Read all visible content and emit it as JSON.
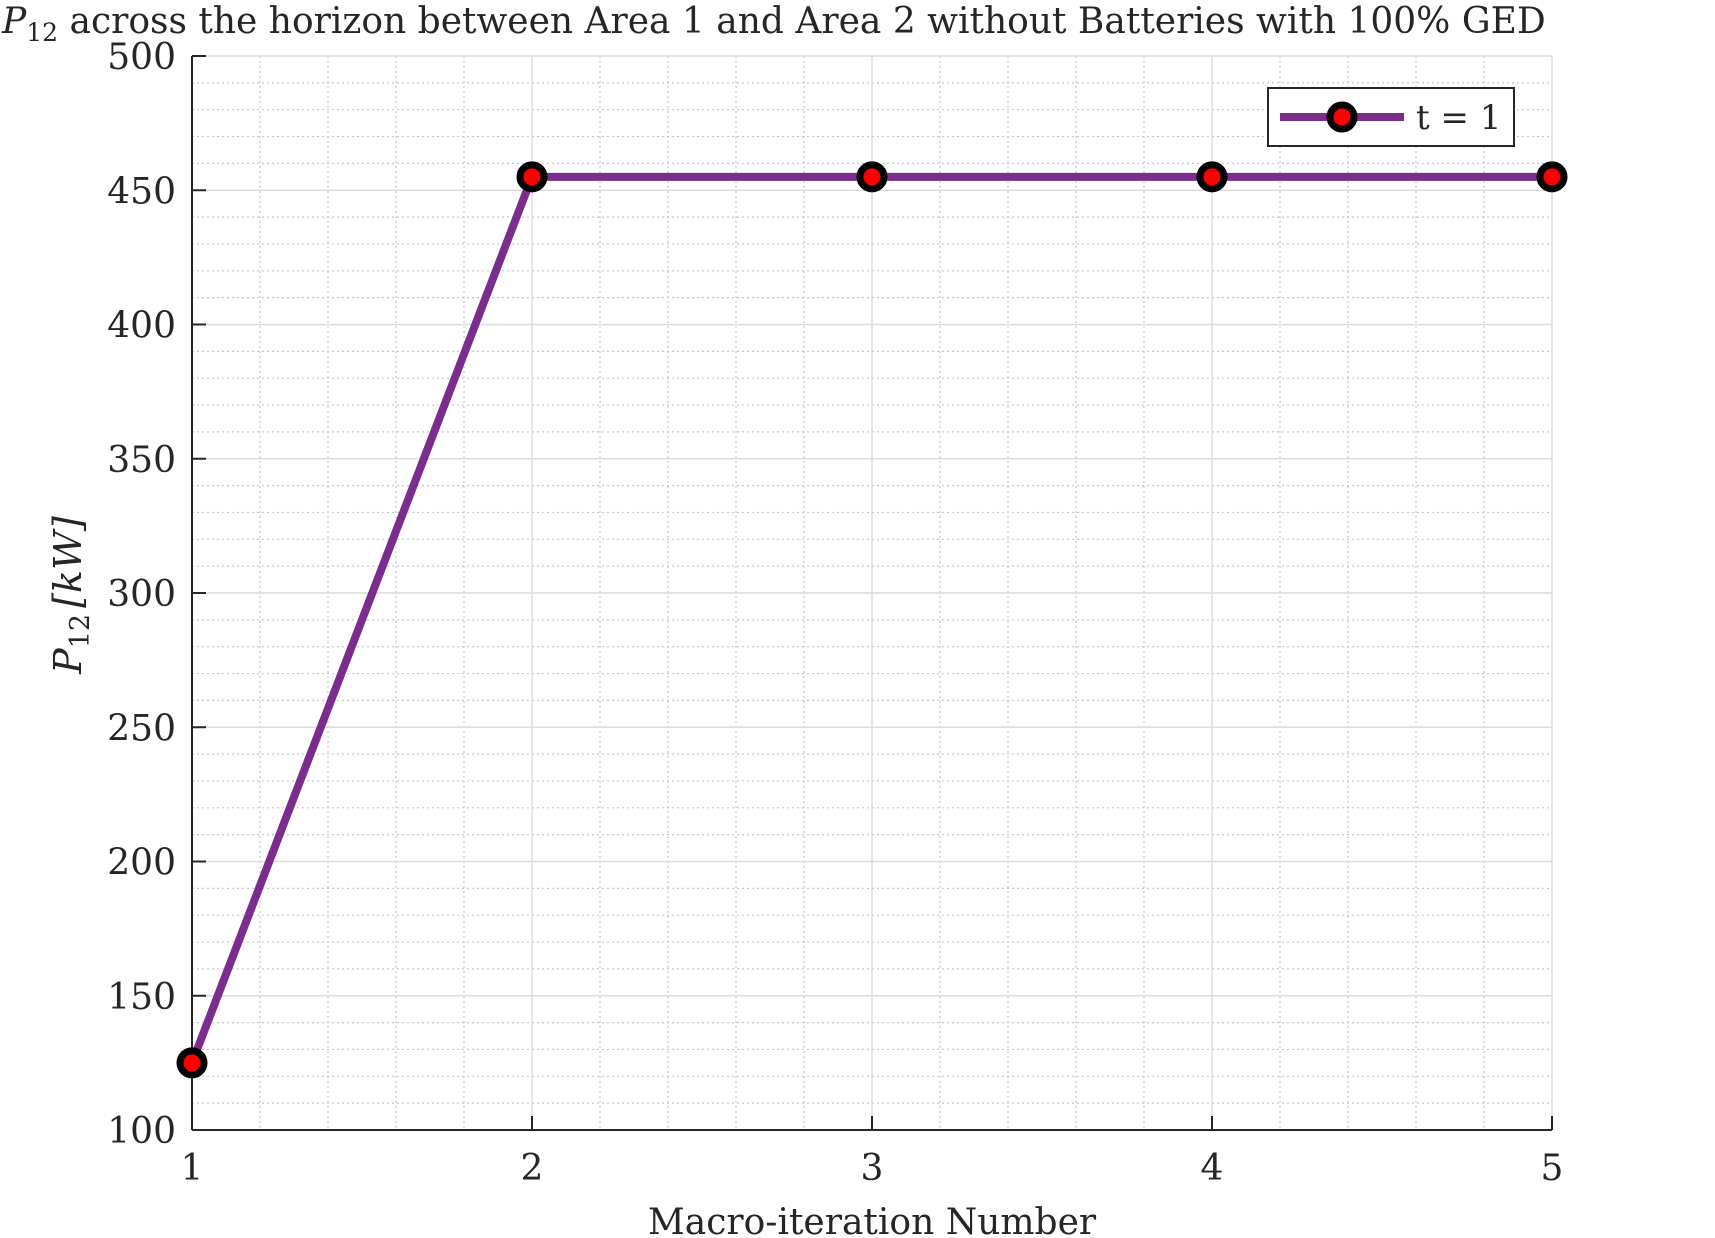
{
  "chart_data": {
    "type": "line",
    "title": {
      "symbol": "P",
      "subscript": "12",
      "text": " across the horizon between Area 1 and Area 2 without Batteries with 100% GED"
    },
    "xlabel": "Macro-iteration Number",
    "ylabel": {
      "symbol": "P",
      "subscript": "12",
      "unit": "[kW]"
    },
    "xlim": [
      1,
      5
    ],
    "ylim": [
      100,
      500
    ],
    "xticks": [
      1,
      2,
      3,
      4,
      5
    ],
    "yticks": [
      100,
      150,
      200,
      250,
      300,
      350,
      400,
      450,
      500
    ],
    "grid": true,
    "minor_grid": true,
    "legend_position": "top-right",
    "series": [
      {
        "name": "t = 1",
        "x": [
          1,
          2,
          3,
          4,
          5
        ],
        "y": [
          125,
          455,
          455,
          455,
          455
        ],
        "line_color": "#7B2D8E",
        "marker_edge_color": "#000000",
        "marker_face_color": "#FF0000"
      }
    ]
  }
}
